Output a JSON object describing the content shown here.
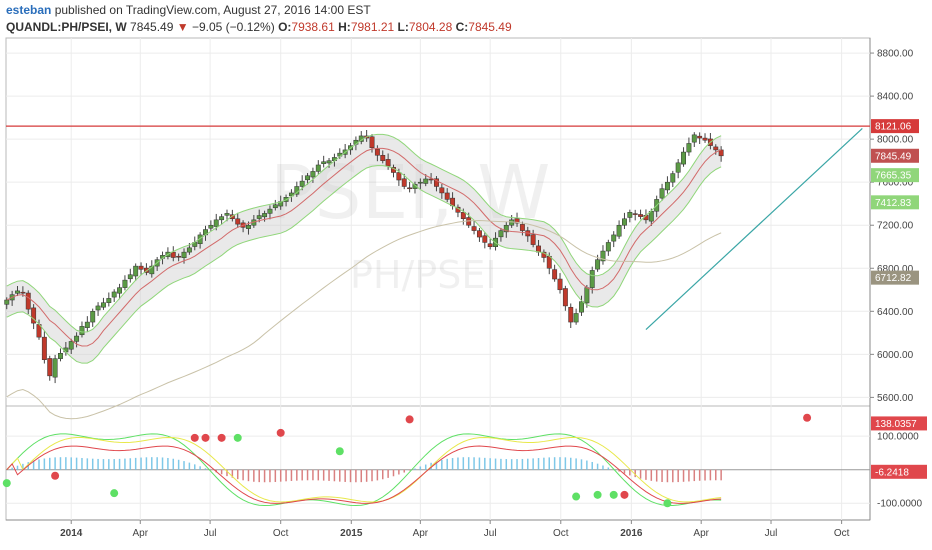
{
  "header": {
    "author": "esteban",
    "published_text": "published on TradingView.com, August 27, 2016 14:00 EST",
    "symbol": "QUANDL:PH/PSEI, W",
    "last": "7845.49",
    "change": "−9.05 (−0.12%)",
    "open_label": "O:",
    "open": "7938.61",
    "high_label": "H:",
    "high": "7981.21",
    "low_label": "L:",
    "low": "7804.28",
    "close_label": "C:",
    "close": "7845.49"
  },
  "watermark": {
    "line1": "PSEI, W",
    "line2": "PH/PSEI"
  },
  "colors": {
    "up": "#5b9a45",
    "down": "#c0392b",
    "band": "#90d67a",
    "baseline": "#d26a6a",
    "trend": "#3aa6a6"
  },
  "chart_data": {
    "type": "candlestick",
    "y_axis_ticks": [
      "8800.00",
      "8400.00",
      "8000.00",
      "7600.00",
      "7200.00",
      "6800.00",
      "6400.00",
      "6000.00",
      "5600.00"
    ],
    "y_axis_values": [
      8800,
      8400,
      8000,
      7600,
      7200,
      6800,
      6400,
      6000,
      5600
    ],
    "ylim": [
      5520,
      8940
    ],
    "x_axis_ticks": [
      "2014",
      "Apr",
      "Jul",
      "Oct",
      "2015",
      "Apr",
      "Jul",
      "Oct",
      "2016",
      "Apr",
      "Jul",
      "Oct"
    ],
    "x_axis_dates": [
      "2014-01-01",
      "2014-04-01",
      "2014-07-01",
      "2014-10-01",
      "2015-01-01",
      "2015-04-01",
      "2015-07-01",
      "2015-10-01",
      "2016-01-01",
      "2016-04-01",
      "2016-07-01",
      "2016-10-01"
    ],
    "xlim": [
      "2013-10-08",
      "2016-11-07"
    ],
    "resistance_line": 8121.06,
    "price_tags": [
      {
        "label": "8121.06",
        "value": 8121.06,
        "color": "#d63a3a"
      },
      {
        "label": "7845.49",
        "value": 7845.49,
        "color": "#c05050"
      },
      {
        "label": "7665.35",
        "value": 7665.35,
        "color": "#90d67a"
      },
      {
        "label": "7412.83",
        "value": 7412.83,
        "color": "#90d67a"
      },
      {
        "label": "6712.82",
        "value": 6712.82,
        "color": "#9a9480"
      }
    ],
    "trendline": [
      {
        "date": "2016-01-20",
        "value": 6230
      },
      {
        "date": "2016-10-28",
        "value": 8100
      }
    ],
    "closes": [
      6505,
      6555,
      6590,
      6570,
      6420,
      6290,
      6160,
      5950,
      5800,
      5960,
      6010,
      6060,
      6120,
      6170,
      6260,
      6300,
      6400,
      6450,
      6480,
      6520,
      6580,
      6620,
      6690,
      6740,
      6820,
      6790,
      6760,
      6820,
      6880,
      6920,
      6950,
      6900,
      6910,
      6950,
      6990,
      7040,
      7110,
      7160,
      7200,
      7250,
      7280,
      7310,
      7260,
      7210,
      7180,
      7200,
      7250,
      7290,
      7310,
      7350,
      7390,
      7420,
      7460,
      7500,
      7560,
      7610,
      7660,
      7700,
      7760,
      7790,
      7800,
      7830,
      7870,
      7900,
      7940,
      7990,
      8030,
      8010,
      7920,
      7850,
      7800,
      7750,
      7690,
      7620,
      7560,
      7540,
      7580,
      7600,
      7630,
      7620,
      7560,
      7500,
      7440,
      7380,
      7320,
      7260,
      7200,
      7150,
      7090,
      7040,
      7000,
      7080,
      7150,
      7200,
      7250,
      7220,
      7150,
      7100,
      7020,
      6950,
      6900,
      6800,
      6700,
      6600,
      6450,
      6300,
      6380,
      6490,
      6620,
      6780,
      6880,
      6960,
      7040,
      7110,
      7200,
      7260,
      7320,
      7300,
      7280,
      7250,
      7330,
      7440,
      7540,
      7600,
      7680,
      7780,
      7880,
      7960,
      8040,
      8010,
      7990,
      7940,
      7900,
      7845
    ],
    "series": [
      {
        "name": "",
        "role": "upper-band"
      },
      {
        "name": "",
        "role": "lower-band"
      },
      {
        "name": "",
        "role": "moving-average"
      },
      {
        "name": "",
        "role": "long-moving-average"
      }
    ],
    "oscillator": {
      "y_axis_ticks": [
        "100.0000",
        "-100.0000"
      ],
      "y_axis_values": [
        100,
        -100
      ],
      "ylim": [
        -150,
        190
      ],
      "zero": 0,
      "value_tags": [
        {
          "label": "138.0357",
          "value": 138.0357,
          "color": "#e0474c"
        },
        {
          "label": "-6.2418",
          "value": -6.2418,
          "color": "#e0474c"
        }
      ],
      "crossovers": [
        {
          "date": "2013-10-09",
          "value": -40,
          "color": "#5ee065"
        },
        {
          "date": "2013-12-11",
          "value": -18,
          "color": "#e0474c"
        },
        {
          "date": "2014-02-26",
          "value": -70,
          "color": "#5ee065"
        },
        {
          "date": "2014-06-11",
          "value": 95,
          "color": "#e0474c"
        },
        {
          "date": "2014-06-25",
          "value": 95,
          "color": "#e0474c"
        },
        {
          "date": "2014-07-16",
          "value": 95,
          "color": "#e0474c"
        },
        {
          "date": "2014-08-06",
          "value": 95,
          "color": "#5ee065"
        },
        {
          "date": "2014-10-01",
          "value": 110,
          "color": "#e0474c"
        },
        {
          "date": "2014-12-17",
          "value": 55,
          "color": "#5ee065"
        },
        {
          "date": "2015-03-18",
          "value": 150,
          "color": "#e0474c"
        },
        {
          "date": "2015-10-21",
          "value": -80,
          "color": "#5ee065"
        },
        {
          "date": "2015-11-18",
          "value": -75,
          "color": "#5ee065"
        },
        {
          "date": "2015-12-09",
          "value": -75,
          "color": "#5ee065"
        },
        {
          "date": "2015-12-23",
          "value": -75,
          "color": "#e0474c"
        },
        {
          "date": "2016-02-17",
          "value": -100,
          "color": "#5ee065"
        },
        {
          "date": "2016-08-17",
          "value": 155,
          "color": "#e0474c"
        }
      ]
    }
  }
}
